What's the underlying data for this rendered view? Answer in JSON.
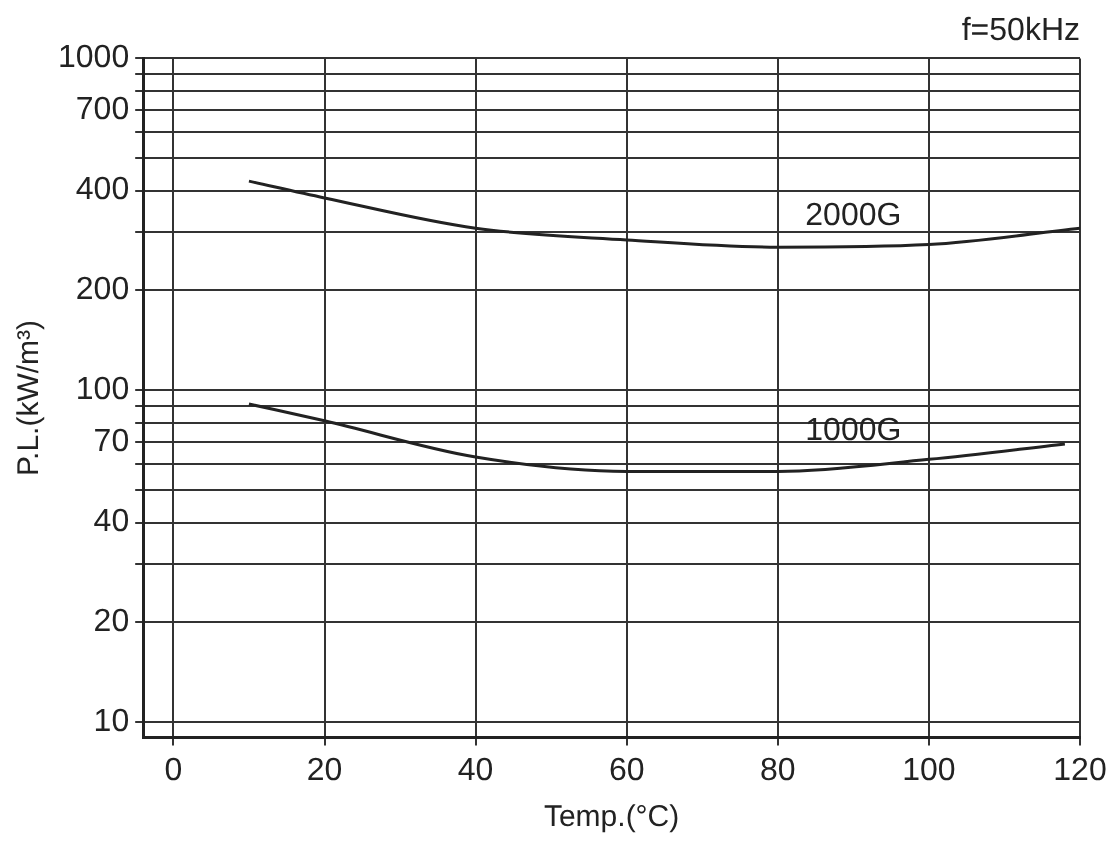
{
  "chart_data": {
    "type": "line",
    "title": "f=50kHz",
    "xlabel": "Temp.(°C)",
    "ylabel": "P.L.(kW/m³)",
    "log": "y",
    "grid": true,
    "legend": false,
    "marker": "none",
    "line_style": "solid",
    "xlim": [
      -4,
      120
    ],
    "xticks": [
      0,
      20,
      40,
      60,
      80,
      100,
      120
    ],
    "ylim": [
      9,
      1000
    ],
    "yticks": [
      10,
      20,
      {
        "value": 30,
        "label": null
      },
      40,
      {
        "value": 50,
        "label": null
      },
      {
        "value": 60,
        "label": null
      },
      70,
      {
        "value": 80,
        "label": null
      },
      {
        "value": 90,
        "label": null
      },
      100,
      200,
      {
        "value": 300,
        "label": null
      },
      400,
      {
        "value": 500,
        "label": null
      },
      {
        "value": 600,
        "label": null
      },
      700,
      {
        "value": 800,
        "label": null
      },
      {
        "value": 900,
        "label": null
      },
      1000
    ],
    "series": [
      {
        "name": "2000G",
        "color": "#222222",
        "x": [
          10,
          20,
          40,
          60,
          80,
          100,
          120
        ],
        "values": [
          427,
          380,
          308,
          284,
          270,
          275,
          308
        ]
      },
      {
        "name": "1000G",
        "color": "#222222",
        "x": [
          10,
          20,
          40,
          60,
          80,
          100,
          118
        ],
        "values": [
          91,
          81,
          63,
          57,
          57,
          62,
          69
        ]
      }
    ]
  }
}
